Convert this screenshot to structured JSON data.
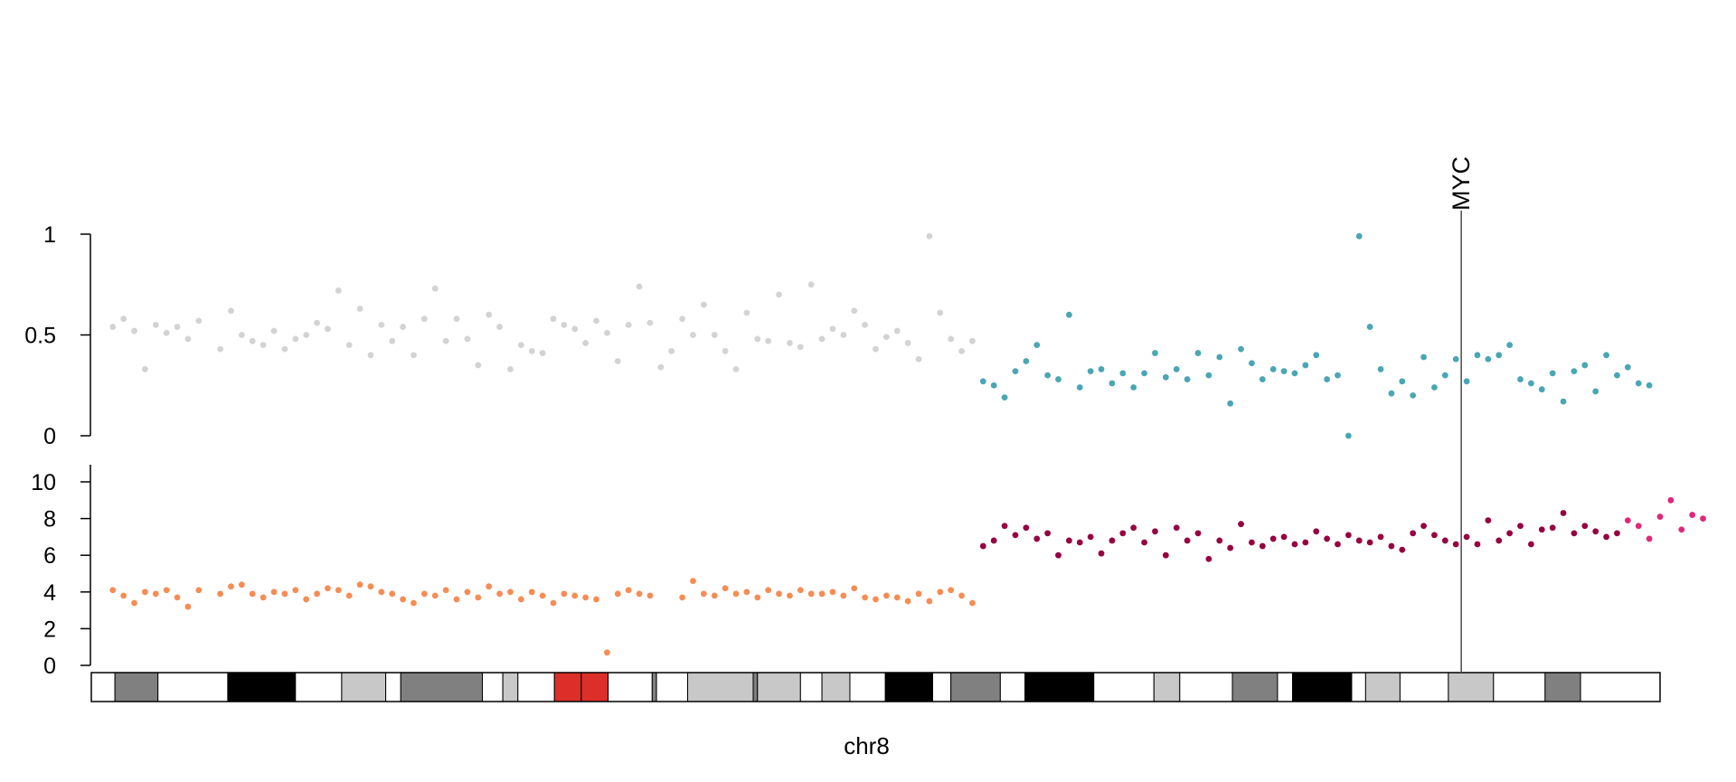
{
  "chart_data": [
    {
      "type": "scatter",
      "panel": "baf",
      "ylim": [
        0,
        1
      ],
      "yticks": [
        {
          "value": 0,
          "label": "0"
        },
        {
          "value": 0.5,
          "label": "0.5"
        },
        {
          "value": 1,
          "label": "1"
        }
      ],
      "xlim": [
        0,
        145
      ],
      "series": [
        {
          "color": "#d3d3d3",
          "x": [
            2,
            3,
            4,
            5,
            6,
            7,
            8,
            9,
            10,
            12,
            13,
            14,
            15,
            16,
            17,
            18,
            19,
            20,
            21,
            22,
            23,
            24,
            25,
            26,
            27,
            28,
            29,
            30,
            31,
            32,
            33,
            34,
            35,
            36,
            37,
            38,
            39,
            40,
            41,
            42,
            43,
            44,
            45,
            46,
            47,
            48,
            49,
            50,
            51,
            52,
            53,
            54,
            55,
            56,
            57,
            58,
            59,
            60,
            61,
            62,
            63,
            64,
            65,
            66,
            67,
            68,
            69,
            70,
            71,
            72,
            73,
            74,
            75,
            76,
            77,
            78,
            79,
            80,
            81,
            82
          ],
          "y": [
            0.54,
            0.58,
            0.52,
            0.33,
            0.55,
            0.51,
            0.54,
            0.48,
            0.57,
            0.43,
            0.62,
            0.5,
            0.47,
            0.45,
            0.52,
            0.43,
            0.48,
            0.5,
            0.56,
            0.53,
            0.72,
            0.45,
            0.63,
            0.4,
            0.55,
            0.47,
            0.54,
            0.4,
            0.58,
            0.73,
            0.47,
            0.58,
            0.48,
            0.35,
            0.6,
            0.54,
            0.33,
            0.45,
            0.42,
            0.41,
            0.58,
            0.55,
            0.53,
            0.46,
            0.57,
            0.51,
            0.37,
            0.55,
            0.74,
            0.56,
            0.34,
            0.42,
            0.58,
            0.5,
            0.65,
            0.5,
            0.42,
            0.33,
            0.61,
            0.48,
            0.47,
            0.7,
            0.46,
            0.44,
            0.75,
            0.48,
            0.53,
            0.5,
            0.62,
            0.55,
            0.43,
            0.49,
            0.52,
            0.46,
            0.38,
            0.99,
            0.61,
            0.48,
            0.42,
            0.47
          ]
        },
        {
          "color": "#4aa6b4",
          "x": [
            83,
            84,
            85,
            86,
            87,
            88,
            89,
            90,
            91,
            92,
            93,
            94,
            95,
            96,
            97,
            98,
            99,
            100,
            101,
            102,
            103,
            104,
            105,
            106,
            107,
            108,
            109,
            110,
            111,
            112,
            113,
            114,
            115,
            116,
            117,
            118,
            119,
            120,
            121,
            122,
            123,
            124,
            125,
            126,
            127,
            128,
            129,
            130,
            131,
            132,
            133,
            134,
            135,
            136,
            137,
            138,
            139,
            140,
            141,
            142,
            143,
            144,
            145
          ],
          "y": [
            0.27,
            0.25,
            0.19,
            0.32,
            0.37,
            0.45,
            0.3,
            0.28,
            0.6,
            0.24,
            0.32,
            0.33,
            0.26,
            0.31,
            0.24,
            0.31,
            0.41,
            0.29,
            0.33,
            0.28,
            0.41,
            0.3,
            0.39,
            0.16,
            0.43,
            0.36,
            0.28,
            0.33,
            0.32,
            0.31,
            0.35,
            0.4,
            0.28,
            0.3,
            0.0,
            0.99,
            0.54,
            0.33,
            0.21,
            0.27,
            0.2,
            0.39,
            0.24,
            0.3,
            0.38,
            0.27,
            0.4,
            0.38,
            0.4,
            0.45,
            0.28,
            0.26,
            0.23,
            0.31,
            0.17,
            0.32,
            0.35,
            0.22,
            0.4,
            0.3,
            0.34,
            0.26,
            0.25
          ]
        }
      ]
    },
    {
      "type": "scatter",
      "panel": "copy_number",
      "ylim": [
        0,
        10
      ],
      "yticks": [
        {
          "value": 0,
          "label": "0"
        },
        {
          "value": 2,
          "label": "2"
        },
        {
          "value": 4,
          "label": "4"
        },
        {
          "value": 6,
          "label": "6"
        },
        {
          "value": 8,
          "label": "8"
        },
        {
          "value": 10,
          "label": "10"
        }
      ],
      "xlim": [
        0,
        145
      ],
      "series": [
        {
          "color": "#f58d55",
          "x": [
            2,
            3,
            4,
            5,
            6,
            7,
            8,
            9,
            10,
            12,
            13,
            14,
            15,
            16,
            17,
            18,
            19,
            20,
            21,
            22,
            23,
            24,
            25,
            26,
            27,
            28,
            29,
            30,
            31,
            32,
            33,
            34,
            35,
            36,
            37,
            38,
            39,
            40,
            41,
            42,
            43,
            44,
            45,
            46,
            47,
            48,
            49,
            50,
            51,
            52,
            55,
            56,
            57,
            58,
            59,
            60,
            61,
            62,
            63,
            64,
            65,
            66,
            67,
            68,
            69,
            70,
            71,
            72,
            73,
            74,
            75,
            76,
            77,
            78,
            79,
            80,
            81,
            82
          ],
          "y": [
            4.1,
            3.8,
            3.4,
            4.0,
            3.9,
            4.1,
            3.7,
            3.2,
            4.1,
            3.9,
            4.3,
            4.4,
            3.9,
            3.7,
            4.0,
            3.9,
            4.1,
            3.6,
            3.9,
            4.2,
            4.1,
            3.8,
            4.4,
            4.3,
            4.0,
            3.9,
            3.6,
            3.4,
            3.9,
            3.8,
            4.1,
            3.6,
            4.0,
            3.7,
            4.3,
            3.9,
            4.0,
            3.6,
            4.0,
            3.8,
            3.4,
            3.9,
            3.8,
            3.7,
            3.6,
            0.7,
            3.9,
            4.1,
            3.9,
            3.8,
            3.7,
            4.6,
            3.9,
            3.8,
            4.2,
            3.9,
            4.0,
            3.7,
            4.1,
            3.9,
            3.8,
            4.1,
            3.9,
            3.9,
            4.0,
            3.8,
            4.2,
            3.7,
            3.6,
            3.8,
            3.7,
            3.5,
            3.9,
            3.5,
            4.0,
            4.1,
            3.8,
            3.4
          ]
        },
        {
          "color": "#960040",
          "x": [
            83,
            84,
            85,
            86,
            87,
            88,
            89,
            90,
            91,
            92,
            93,
            94,
            95,
            96,
            97,
            98,
            99,
            100,
            101,
            102,
            103,
            104,
            105,
            106,
            107,
            108,
            109,
            110,
            111,
            112,
            113,
            114,
            115,
            116,
            117,
            118,
            119,
            120,
            121,
            122,
            123,
            124,
            125,
            126,
            127,
            128,
            129,
            130,
            131,
            132,
            133,
            134,
            135,
            136,
            137,
            138,
            139,
            140,
            141,
            142
          ],
          "y": [
            6.5,
            6.8,
            7.6,
            7.1,
            7.5,
            6.9,
            7.2,
            6.0,
            6.8,
            6.7,
            7.0,
            6.1,
            6.8,
            7.2,
            7.5,
            6.7,
            7.3,
            6.0,
            7.5,
            6.8,
            7.2,
            5.8,
            6.8,
            6.4,
            7.7,
            6.7,
            6.5,
            6.9,
            7.0,
            6.6,
            6.7,
            7.3,
            6.9,
            6.6,
            7.1,
            6.8,
            6.7,
            7.0,
            6.5,
            6.3,
            7.2,
            7.6,
            7.1,
            6.8,
            6.6,
            7.0,
            6.6,
            7.9,
            6.8,
            7.2,
            7.6,
            6.6,
            7.4,
            7.5,
            8.3,
            7.2,
            7.6,
            7.3,
            7.0,
            7.2
          ]
        },
        {
          "color": "#e0287a",
          "x": [
            143,
            144,
            145,
            146,
            147,
            148,
            149,
            150
          ],
          "y": [
            7.9,
            7.6,
            6.9,
            8.1,
            9.0,
            7.4,
            8.2,
            8.0
          ]
        }
      ]
    }
  ],
  "xlabel": "chr8",
  "gene_marker": {
    "label": "MYC",
    "x": 127.5,
    "color": "#555555"
  },
  "ideogram": {
    "length": 146,
    "bands": [
      {
        "start": 0,
        "end": 2.2,
        "color": "#ffffff"
      },
      {
        "start": 2.2,
        "end": 6.2,
        "color": "#808080"
      },
      {
        "start": 6.2,
        "end": 12.7,
        "color": "#ffffff"
      },
      {
        "start": 12.7,
        "end": 19.0,
        "color": "#000000"
      },
      {
        "start": 19.0,
        "end": 23.3,
        "color": "#ffffff"
      },
      {
        "start": 23.3,
        "end": 27.4,
        "color": "#c8c8c8"
      },
      {
        "start": 27.4,
        "end": 28.8,
        "color": "#ffffff"
      },
      {
        "start": 28.8,
        "end": 36.4,
        "color": "#808080"
      },
      {
        "start": 36.4,
        "end": 38.3,
        "color": "#ffffff"
      },
      {
        "start": 38.3,
        "end": 39.7,
        "color": "#c8c8c8"
      },
      {
        "start": 39.7,
        "end": 43.1,
        "color": "#ffffff"
      },
      {
        "start": 43.1,
        "end": 45.6,
        "color": "#dc2f2a"
      },
      {
        "start": 45.6,
        "end": 48.1,
        "color": "#dc2f2a"
      },
      {
        "start": 48.1,
        "end": 52.2,
        "color": "#ffffff"
      },
      {
        "start": 52.2,
        "end": 52.6,
        "color": "#808080"
      },
      {
        "start": 52.6,
        "end": 55.5,
        "color": "#ffffff"
      },
      {
        "start": 55.5,
        "end": 61.6,
        "color": "#c8c8c8"
      },
      {
        "start": 61.6,
        "end": 62.0,
        "color": "#808080"
      },
      {
        "start": 62.0,
        "end": 66.0,
        "color": "#c8c8c8"
      },
      {
        "start": 66.0,
        "end": 68.0,
        "color": "#ffffff"
      },
      {
        "start": 68.0,
        "end": 70.6,
        "color": "#c8c8c8"
      },
      {
        "start": 70.6,
        "end": 73.9,
        "color": "#ffffff"
      },
      {
        "start": 73.9,
        "end": 78.3,
        "color": "#000000"
      },
      {
        "start": 78.3,
        "end": 80.0,
        "color": "#ffffff"
      },
      {
        "start": 80.0,
        "end": 84.6,
        "color": "#808080"
      },
      {
        "start": 84.6,
        "end": 86.9,
        "color": "#ffffff"
      },
      {
        "start": 86.9,
        "end": 93.3,
        "color": "#000000"
      },
      {
        "start": 93.3,
        "end": 98.9,
        "color": "#ffffff"
      },
      {
        "start": 98.9,
        "end": 101.3,
        "color": "#c8c8c8"
      },
      {
        "start": 101.3,
        "end": 106.2,
        "color": "#ffffff"
      },
      {
        "start": 106.2,
        "end": 110.4,
        "color": "#808080"
      },
      {
        "start": 110.4,
        "end": 111.8,
        "color": "#ffffff"
      },
      {
        "start": 111.8,
        "end": 117.3,
        "color": "#000000"
      },
      {
        "start": 117.3,
        "end": 118.6,
        "color": "#ffffff"
      },
      {
        "start": 118.6,
        "end": 121.8,
        "color": "#c8c8c8"
      },
      {
        "start": 121.8,
        "end": 126.3,
        "color": "#ffffff"
      },
      {
        "start": 126.3,
        "end": 130.5,
        "color": "#c8c8c8"
      },
      {
        "start": 130.5,
        "end": 135.3,
        "color": "#ffffff"
      },
      {
        "start": 135.3,
        "end": 138.6,
        "color": "#808080"
      },
      {
        "start": 138.6,
        "end": 146.0,
        "color": "#ffffff"
      }
    ]
  }
}
